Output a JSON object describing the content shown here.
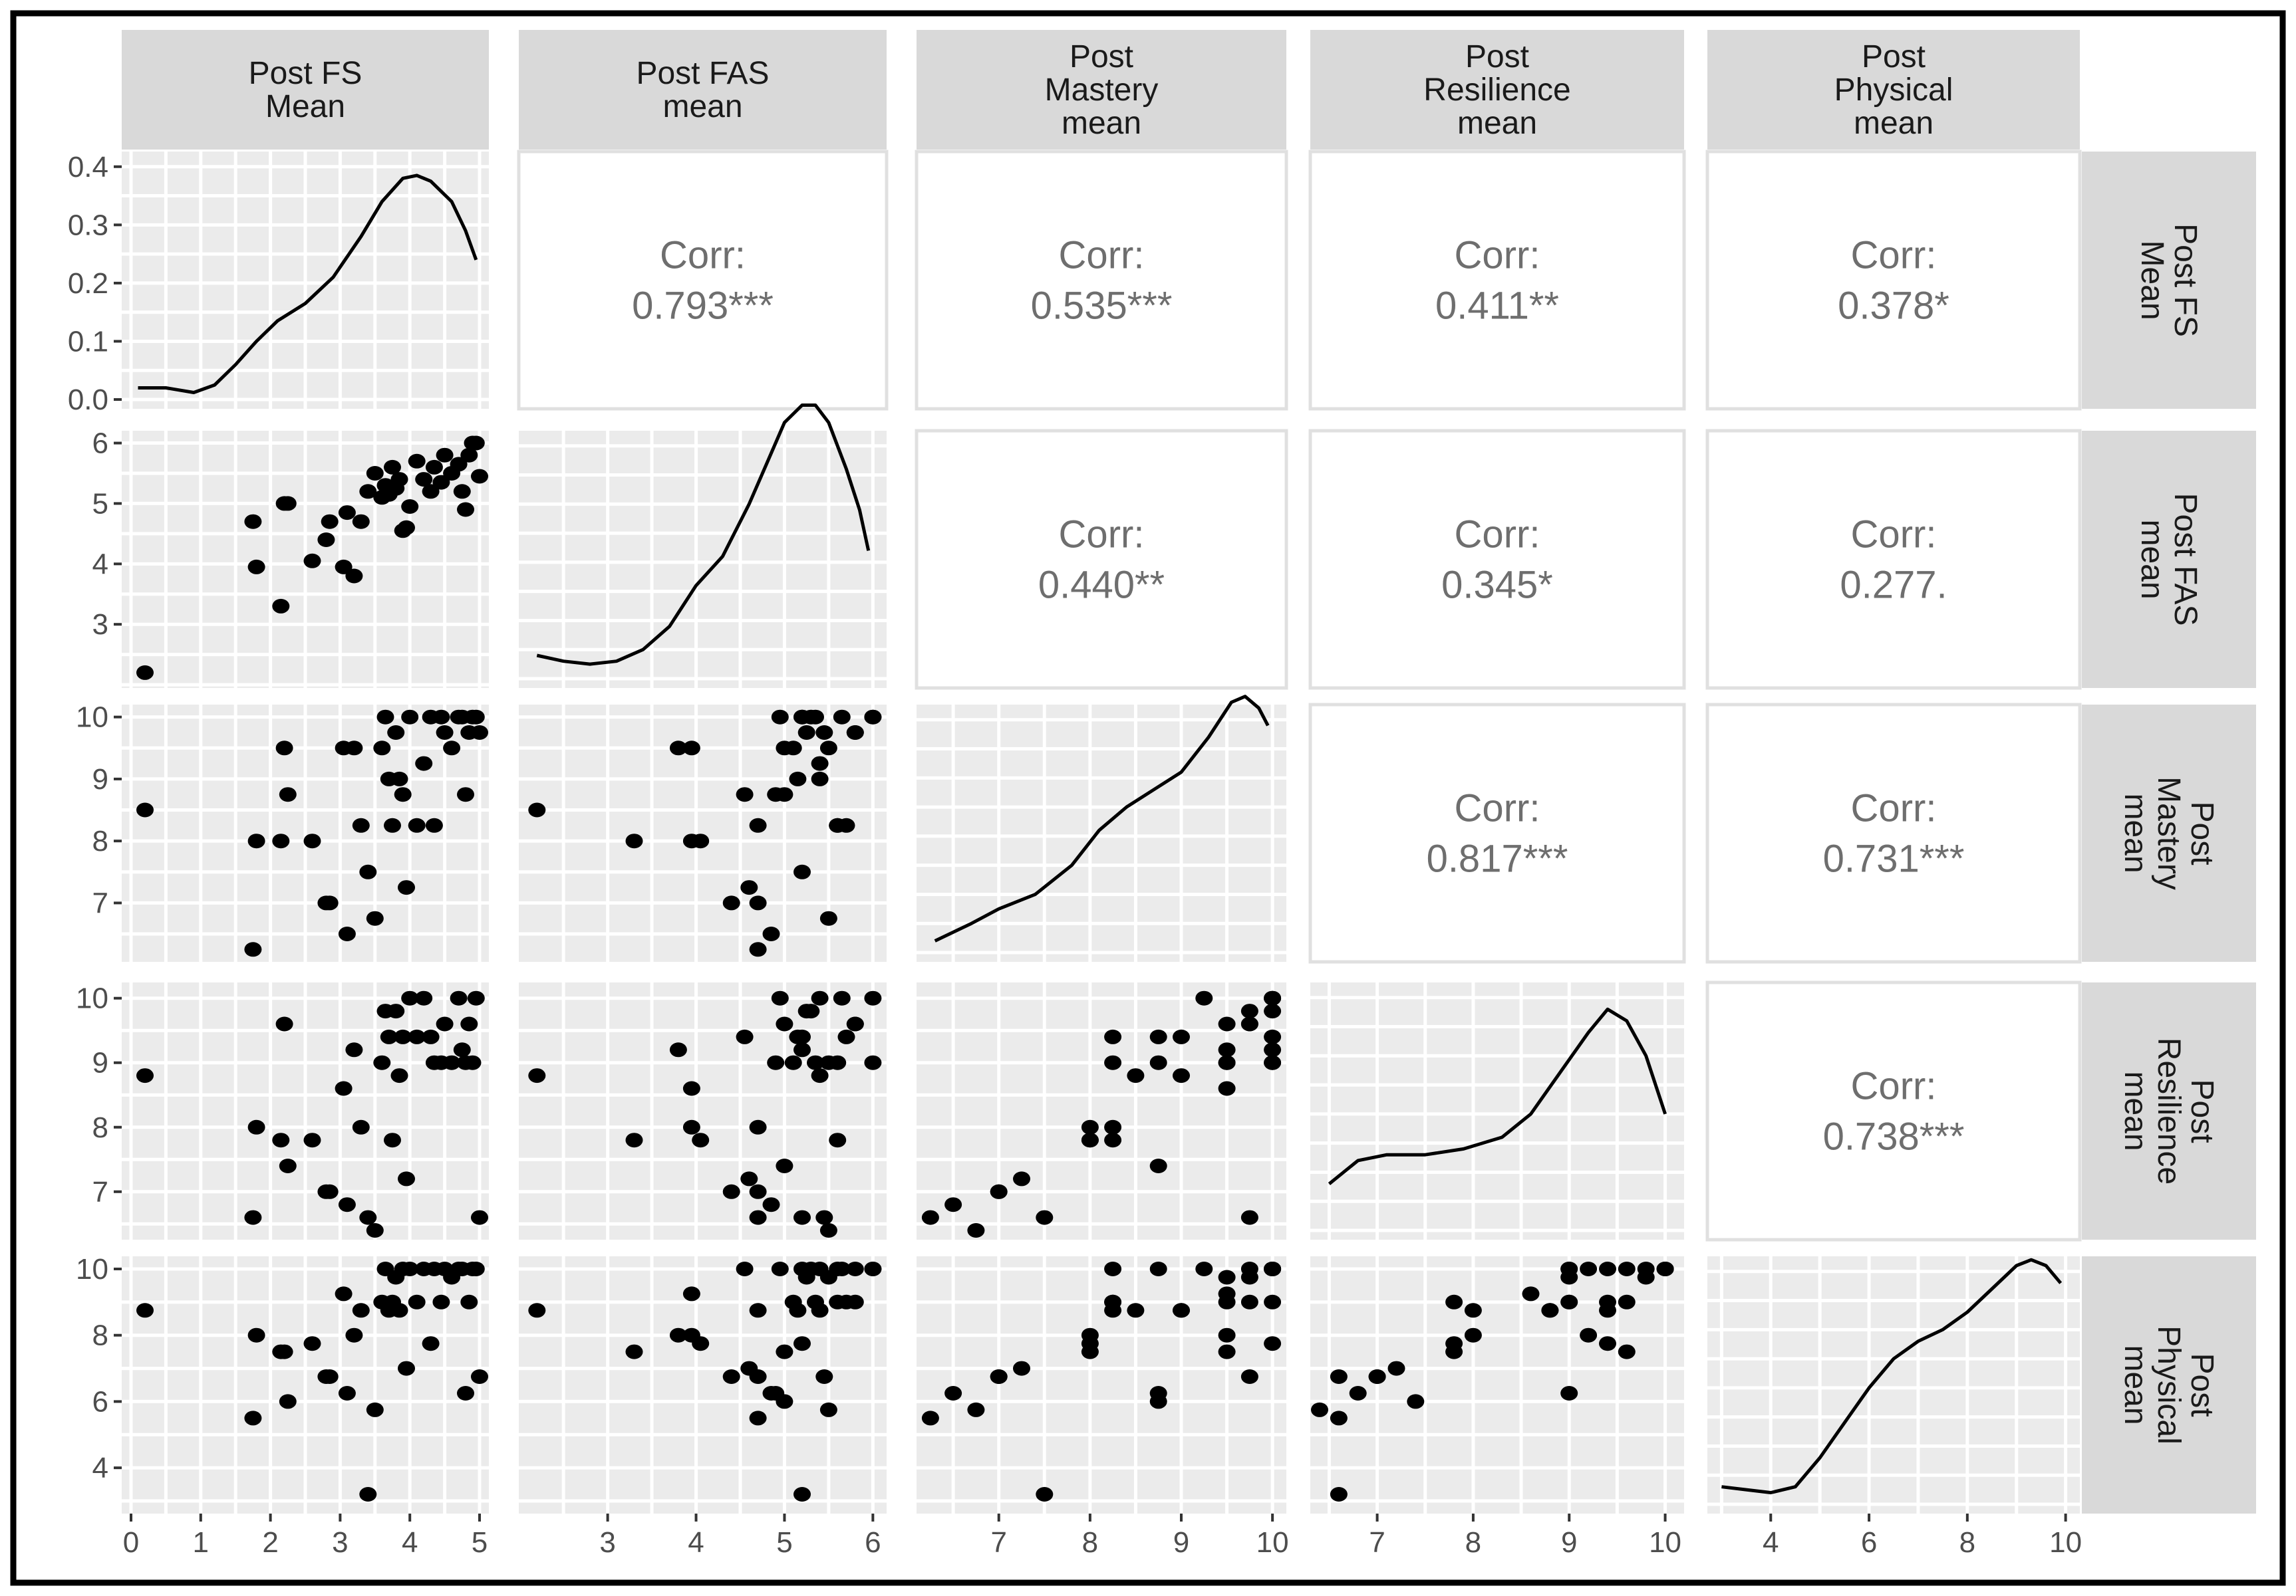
{
  "chart_data": {
    "type": "scatter",
    "title": "",
    "variables": [
      {
        "key": "fs",
        "label": [
          "Post FS",
          "Mean"
        ],
        "range": [
          0,
          5
        ],
        "ticks": [
          0,
          1,
          2,
          3,
          4,
          5
        ]
      },
      {
        "key": "fas",
        "label": [
          "Post FAS",
          "mean"
        ],
        "range": [
          2.1,
          6.05
        ],
        "ticks": [
          3,
          4,
          5,
          6
        ]
      },
      {
        "key": "mastery",
        "label": [
          "Post",
          "Mastery",
          "mean"
        ],
        "range": [
          6.2,
          10.05
        ],
        "ticks": [
          7,
          8,
          9,
          10
        ]
      },
      {
        "key": "resilience",
        "label": [
          "Post",
          "Resilience",
          "mean"
        ],
        "range": [
          6.4,
          10.1
        ],
        "ticks": [
          7,
          8,
          9,
          10
        ]
      },
      {
        "key": "physical",
        "label": [
          "Post",
          "Physical",
          "mean"
        ],
        "range": [
          2.9,
          10.1
        ],
        "ticks": [
          4,
          6,
          8,
          10
        ]
      }
    ],
    "density_axis": {
      "range": [
        0,
        0.41
      ],
      "ticks": [
        "0.0",
        "0.1",
        "0.2",
        "0.3",
        "0.4"
      ],
      "tick_values": [
        0,
        0.1,
        0.2,
        0.3,
        0.4
      ]
    },
    "correlations": [
      {
        "row": 0,
        "col": 1,
        "title": "Corr:",
        "value": "0.793***"
      },
      {
        "row": 0,
        "col": 2,
        "title": "Corr:",
        "value": "0.535***"
      },
      {
        "row": 0,
        "col": 3,
        "title": "Corr:",
        "value": "0.411**"
      },
      {
        "row": 0,
        "col": 4,
        "title": "Corr:",
        "value": "0.378*"
      },
      {
        "row": 1,
        "col": 2,
        "title": "Corr:",
        "value": "0.440**"
      },
      {
        "row": 1,
        "col": 3,
        "title": "Corr:",
        "value": "0.345*"
      },
      {
        "row": 1,
        "col": 4,
        "title": "Corr:",
        "value": "0.277."
      },
      {
        "row": 2,
        "col": 3,
        "title": "Corr:",
        "value": "0.817***"
      },
      {
        "row": 2,
        "col": 4,
        "title": "Corr:",
        "value": "0.731***"
      },
      {
        "row": 3,
        "col": 4,
        "title": "Corr:",
        "value": "0.738***"
      }
    ],
    "densities": [
      {
        "var": "fs",
        "x": [
          0.1,
          0.5,
          0.9,
          1.2,
          1.5,
          1.8,
          2.1,
          2.5,
          2.9,
          3.3,
          3.6,
          3.9,
          4.1,
          4.3,
          4.6,
          4.8,
          4.95
        ],
        "y": [
          0.02,
          0.02,
          0.012,
          0.025,
          0.06,
          0.1,
          0.135,
          0.165,
          0.21,
          0.28,
          0.34,
          0.38,
          0.385,
          0.375,
          0.34,
          0.29,
          0.24
        ]
      },
      {
        "var": "fas",
        "x": [
          2.2,
          2.5,
          2.8,
          3.1,
          3.4,
          3.7,
          4.0,
          4.3,
          4.6,
          4.8,
          5.0,
          5.2,
          5.35,
          5.5,
          5.7,
          5.85,
          5.95
        ],
        "y": [
          0.04,
          0.03,
          0.025,
          0.03,
          0.05,
          0.09,
          0.16,
          0.21,
          0.3,
          0.37,
          0.44,
          0.47,
          0.47,
          0.44,
          0.36,
          0.29,
          0.22
        ]
      },
      {
        "var": "mastery",
        "x": [
          6.3,
          6.7,
          7.0,
          7.4,
          7.8,
          8.1,
          8.4,
          8.7,
          9.0,
          9.3,
          9.55,
          9.7,
          9.85,
          9.95
        ],
        "y": [
          0.02,
          0.05,
          0.075,
          0.1,
          0.15,
          0.21,
          0.25,
          0.28,
          0.31,
          0.37,
          0.43,
          0.44,
          0.42,
          0.39
        ]
      },
      {
        "var": "resilience",
        "x": [
          6.5,
          6.8,
          7.1,
          7.5,
          7.9,
          8.3,
          8.6,
          8.9,
          9.2,
          9.4,
          9.6,
          9.8,
          10.0
        ],
        "y": [
          0.08,
          0.12,
          0.13,
          0.13,
          0.14,
          0.16,
          0.2,
          0.27,
          0.34,
          0.38,
          0.36,
          0.3,
          0.2
        ]
      },
      {
        "var": "physical",
        "x": [
          3.0,
          3.5,
          4.0,
          4.5,
          5.0,
          5.5,
          6.0,
          6.5,
          7.0,
          7.5,
          8.0,
          8.5,
          9.0,
          9.3,
          9.6,
          9.9
        ],
        "y": [
          0.03,
          0.025,
          0.02,
          0.03,
          0.08,
          0.14,
          0.2,
          0.25,
          0.28,
          0.3,
          0.33,
          0.37,
          0.41,
          0.42,
          0.41,
          0.38
        ]
      }
    ],
    "points": {
      "fs": [
        0.2,
        1.75,
        1.8,
        2.15,
        2.2,
        2.25,
        2.6,
        2.8,
        2.85,
        3.05,
        3.1,
        3.2,
        3.3,
        3.4,
        3.5,
        3.6,
        3.65,
        3.7,
        3.75,
        3.8,
        3.85,
        3.9,
        3.95,
        4.0,
        4.1,
        4.2,
        4.3,
        4.35,
        4.45,
        4.5,
        4.6,
        4.7,
        4.75,
        4.8,
        4.85,
        4.9,
        4.95,
        5.0
      ],
      "fas": [
        2.2,
        4.7,
        3.95,
        3.3,
        5.0,
        5.0,
        4.05,
        4.4,
        4.7,
        3.95,
        4.85,
        3.8,
        4.7,
        5.2,
        5.5,
        5.1,
        5.3,
        5.15,
        5.6,
        5.25,
        5.4,
        4.55,
        4.6,
        4.95,
        5.7,
        5.4,
        5.2,
        5.6,
        5.35,
        5.8,
        5.5,
        5.65,
        5.2,
        4.9,
        5.8,
        6.0,
        6.0,
        5.45
      ],
      "mastery": [
        8.5,
        6.25,
        8.0,
        8.0,
        9.5,
        8.75,
        8.0,
        7.0,
        7.0,
        9.5,
        6.5,
        9.5,
        8.25,
        7.5,
        6.75,
        9.5,
        10.0,
        9.0,
        8.25,
        9.75,
        9.0,
        8.75,
        7.25,
        10.0,
        8.25,
        9.25,
        10.0,
        8.25,
        10.0,
        9.75,
        9.5,
        10.0,
        10.0,
        8.75,
        9.75,
        10.0,
        10.0,
        9.75
      ],
      "resilience": [
        8.8,
        6.6,
        8.0,
        7.8,
        9.6,
        7.4,
        7.8,
        7.0,
        7.0,
        8.6,
        6.8,
        9.2,
        8.0,
        6.6,
        6.4,
        9.0,
        9.8,
        9.4,
        7.8,
        9.8,
        8.8,
        9.4,
        7.2,
        10.0,
        9.4,
        10.0,
        9.4,
        9.0,
        9.0,
        9.6,
        9.0,
        10.0,
        9.2,
        9.0,
        9.6,
        9.0,
        10.0,
        6.6
      ],
      "physical": [
        8.75,
        5.5,
        8.0,
        7.5,
        7.5,
        6.0,
        7.75,
        6.75,
        6.75,
        9.25,
        6.25,
        8.0,
        8.75,
        3.2,
        5.75,
        9.0,
        10.0,
        8.75,
        9.0,
        9.75,
        8.75,
        10.0,
        7.0,
        10.0,
        9.0,
        10.0,
        7.75,
        10.0,
        9.0,
        10.0,
        9.75,
        10.0,
        10.0,
        6.25,
        9.0,
        10.0,
        10.0,
        6.75
      ]
    }
  }
}
